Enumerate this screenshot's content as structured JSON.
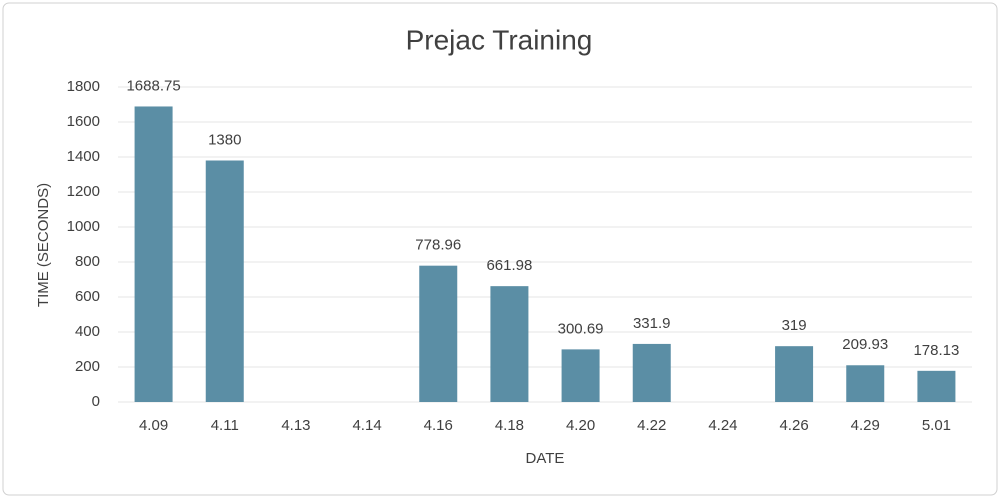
{
  "chart_data": {
    "type": "bar",
    "title": "Prejac Training",
    "x_label": "DATE",
    "y_label": "TIME (SECONDS)",
    "categories": [
      "4.09",
      "4.11",
      "4.13",
      "4.14",
      "4.16",
      "4.18",
      "4.20",
      "4.22",
      "4.24",
      "4.26",
      "4.29",
      "5.01"
    ],
    "values": [
      1688.75,
      1380,
      null,
      null,
      778.96,
      661.98,
      300.69,
      331.9,
      null,
      319,
      209.93,
      178.13
    ],
    "color": "#5b8ea5",
    "ylim": [
      0,
      1800
    ],
    "yticks": [
      0,
      200,
      400,
      600,
      800,
      1000,
      1200,
      1400,
      1600,
      1800
    ],
    "grid": true
  }
}
